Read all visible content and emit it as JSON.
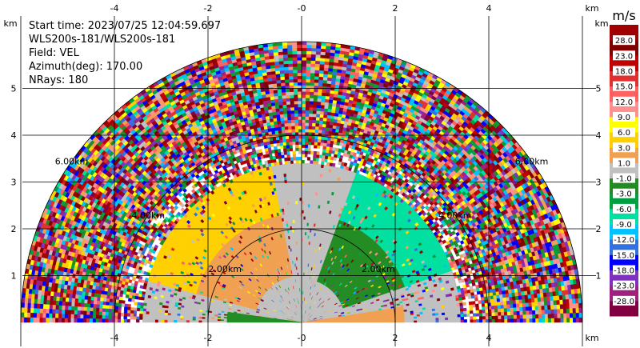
{
  "info": {
    "start_time": "Start time: 2023/07/25 12:04:59.697",
    "source": "WLS200s-181/WLS200s-181",
    "field": "Field: VEL",
    "azimuth": "Azimuth(deg): 170.00",
    "nrays": "NRays: 180"
  },
  "colors": {
    "background": "#ffffff",
    "gridline": "#000000",
    "zero_band": "#c0c0c0"
  },
  "chart_data": {
    "type": "heatmap",
    "title": "",
    "xlabel": "km",
    "ylabel": "km",
    "xlim": [
      -6,
      6
    ],
    "ylim": [
      0,
      6
    ],
    "x_ticks": [
      "-4",
      "-2",
      "-0",
      "2",
      "4"
    ],
    "x_tick_values": [
      -4,
      -2,
      0,
      2,
      4
    ],
    "y_ticks": [
      "1",
      "2",
      "3",
      "4",
      "5"
    ],
    "y_tick_values": [
      1,
      2,
      3,
      4,
      5
    ],
    "axis_unit_label": "km",
    "range_rings": [
      {
        "label": "2.00km",
        "radius": 2
      },
      {
        "label": "4.00km",
        "radius": 4
      },
      {
        "label": "6.00km",
        "radius": 6
      }
    ],
    "max_range_km": 6,
    "colorbar": {
      "unit": "m/s",
      "labels": [
        "-28.0",
        "-23.0",
        "-18.0",
        "-15.0",
        "-12.0",
        "-9.0",
        "-6.0",
        "-3.0",
        "-1.0",
        "1.0",
        "3.0",
        "6.0",
        "9.0",
        "12.0",
        "15.0",
        "18.0",
        "23.0",
        "28.0"
      ],
      "colors": [
        "#800040",
        "#a02080",
        "#8030c0",
        "#0000ff",
        "#3070e0",
        "#00c0ff",
        "#00e0a0",
        "#00a040",
        "#228b22",
        "#c0c0c0",
        "#f0a050",
        "#ffd000",
        "#ffff00",
        "#ff9090",
        "#ff6060",
        "#e03030",
        "#c00000",
        "#800000",
        "#a00000"
      ]
    }
  }
}
